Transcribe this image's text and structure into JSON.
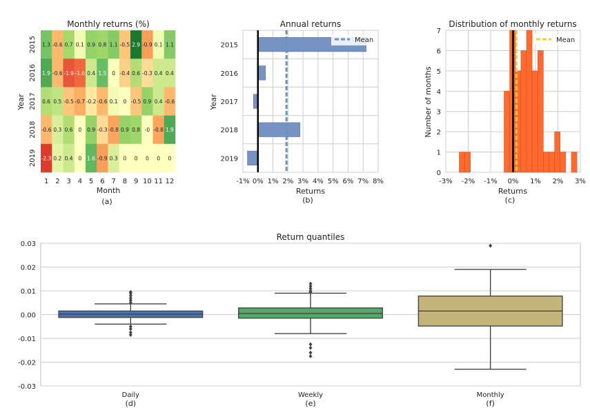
{
  "chart_data": [
    {
      "type": "heatmap",
      "title": "Monthly returns (%)",
      "xlabel": "Month",
      "ylabel": "Year",
      "caption": "(a)",
      "x_categories": [
        "1",
        "2",
        "3",
        "4",
        "5",
        "6",
        "7",
        "8",
        "9",
        "10",
        "11",
        "12"
      ],
      "y_categories": [
        "2015",
        "2016",
        "2017",
        "2018",
        "2019"
      ],
      "values": [
        [
          1.3,
          -0.6,
          0.7,
          0.1,
          0.9,
          0.8,
          1.1,
          -0.5,
          2.9,
          -0.9,
          0.1,
          1.1
        ],
        [
          1.9,
          -0.6,
          -1.9,
          -1.6,
          0.4,
          1.5,
          0,
          -0.4,
          0.6,
          -0.3,
          0.4,
          0.4
        ],
        [
          0.6,
          0.5,
          -0.5,
          -0.7,
          -0.2,
          -0.6,
          0.1,
          0,
          -0.5,
          0.9,
          0.4,
          -0.6
        ],
        [
          -0.6,
          0.3,
          0.6,
          0,
          0.9,
          -0.3,
          -0.8,
          0.9,
          0.8,
          0,
          -0.8,
          1.9
        ],
        [
          -2.3,
          0.2,
          0.4,
          0,
          1.6,
          -0.9,
          0.3,
          0,
          0,
          0,
          0,
          0
        ]
      ],
      "labels": [
        [
          "1.3",
          "-0.6",
          "0.7",
          "0.1",
          "0.9",
          "0.8",
          "1.1",
          "-0.5",
          "2.9",
          "-0.9",
          "0.1",
          "1.1"
        ],
        [
          "1.9",
          "-0.6",
          "-1.9",
          "-1.6",
          "0.4",
          "1.5",
          "0",
          "-0.4",
          "0.6",
          "-0.3",
          "0.4",
          "0.4"
        ],
        [
          "0.6",
          "0.5",
          "-0.5",
          "-0.7",
          "-0.2",
          "-0.6",
          "0.1",
          "0",
          "-0.5",
          "0.9",
          "0.4",
          "-0.6"
        ],
        [
          "-0.6",
          "0.3",
          "0.6",
          "0",
          "0.9",
          "-0.3",
          "-0.8",
          "0.9",
          "0.8",
          "-0",
          "-0.8",
          "1.9"
        ],
        [
          "-2.3",
          "0.2",
          "0.4",
          "0",
          "1.6",
          "-0.9",
          "0.3",
          "0",
          "0",
          "0",
          "0",
          "0"
        ]
      ],
      "colormap": "RdYlGn"
    },
    {
      "type": "bar",
      "orientation": "horizontal",
      "title": "Annual returns",
      "xlabel": "Returns",
      "ylabel": "Year",
      "caption": "(b)",
      "categories": [
        "2015",
        "2016",
        "2017",
        "2018",
        "2019"
      ],
      "values": [
        7.2,
        0.5,
        -0.3,
        2.8,
        -0.7
      ],
      "mean": 1.9,
      "legend": [
        "Mean"
      ],
      "xlim": [
        -1,
        8
      ],
      "xticks": [
        "-1%",
        "0%",
        "1%",
        "2%",
        "3%",
        "4%",
        "5%",
        "6%",
        "7%",
        "8%"
      ],
      "bar_color": "#7693c4",
      "mean_color": "#6b93b8"
    },
    {
      "type": "histogram",
      "title": "Distribution of monthly returns",
      "xlabel": "Returns",
      "ylabel": "Number of months",
      "caption": "(c)",
      "bin_start": -2.4,
      "bin_width": 0.25,
      "counts": [
        1,
        1,
        0,
        0,
        0,
        0,
        0,
        0,
        4,
        7,
        5,
        6,
        7,
        5,
        6,
        1,
        1,
        2,
        1,
        0,
        1
      ],
      "mean": 0.15,
      "legend": [
        "Mean"
      ],
      "xlim": [
        -3,
        3
      ],
      "ylim": [
        0,
        7
      ],
      "xticks": [
        "-3%",
        "-2%",
        "-1%",
        "0%",
        "1%",
        "2%",
        "3%"
      ],
      "yticks": [
        "0",
        "1",
        "2",
        "3",
        "4",
        "5",
        "6",
        "7"
      ],
      "bar_color": "#ff6a2e",
      "mean_color": "#f2d22e"
    },
    {
      "type": "box",
      "title": "Return quantiles",
      "ylim": [
        -0.03,
        0.03
      ],
      "yticks": [
        "0.03",
        "0.02",
        "0.01",
        "0.00",
        "-0.01",
        "-0.02",
        "-0.03"
      ],
      "series": [
        {
          "name": "Daily",
          "caption": "(d)",
          "q1": -0.0012,
          "median": 0.0002,
          "q3": 0.0015,
          "whisker_low": -0.004,
          "whisker_high": 0.0045,
          "outliers": [
            0.005,
            0.006,
            0.007,
            0.008,
            0.009,
            0.0095,
            -0.005,
            -0.006,
            -0.0075,
            -0.0085
          ],
          "color": "#4c72b0"
        },
        {
          "name": "Weekly",
          "caption": "(e)",
          "q1": -0.0015,
          "median": 0.0005,
          "q3": 0.0028,
          "whisker_low": -0.008,
          "whisker_high": 0.009,
          "outliers": [
            0.0095,
            0.01,
            0.011,
            0.012,
            0.013,
            -0.0125,
            -0.014,
            -0.016,
            -0.0175
          ],
          "color": "#55a868"
        },
        {
          "name": "Monthly",
          "caption": "(f)",
          "q1": -0.0048,
          "median": 0.0015,
          "q3": 0.0078,
          "whisker_low": -0.023,
          "whisker_high": 0.019,
          "outliers": [
            0.029
          ],
          "color": "#c4b57a"
        }
      ]
    }
  ]
}
